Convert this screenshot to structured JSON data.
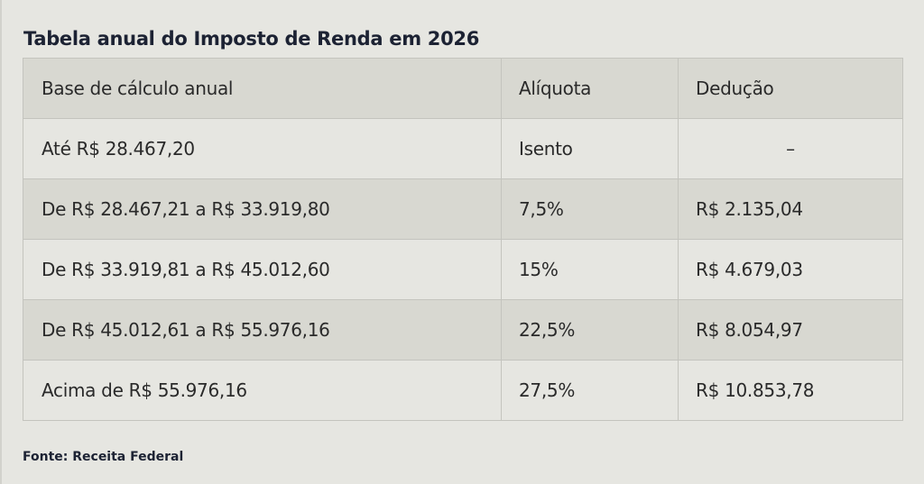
{
  "title": "Tabela anual do Imposto de Renda em 2026",
  "table": {
    "headers": [
      "Base de cálculo anual",
      "Alíquota",
      "Dedução"
    ],
    "rows": [
      [
        "Até R$ 28.467,20",
        "Isento",
        "–"
      ],
      [
        "De R$ 28.467,21 a R$ 33.919,80",
        "7,5%",
        "R$ 2.135,04"
      ],
      [
        "De R$ 33.919,81 a R$ 45.012,60",
        "15%",
        "R$ 4.679,03"
      ],
      [
        "De R$ 45.012,61 a R$ 55.976,16",
        "22,5%",
        "R$ 8.054,97"
      ],
      [
        "Acima de R$ 55.976,16",
        "27,5%",
        "R$ 10.853,78"
      ]
    ]
  },
  "source": "Fonte: Receita Federal",
  "colors": {
    "background": "#e6e6e1",
    "shaded_row": "#d8d8d1",
    "title_text": "#1c2233",
    "border": "#c4c4be"
  }
}
